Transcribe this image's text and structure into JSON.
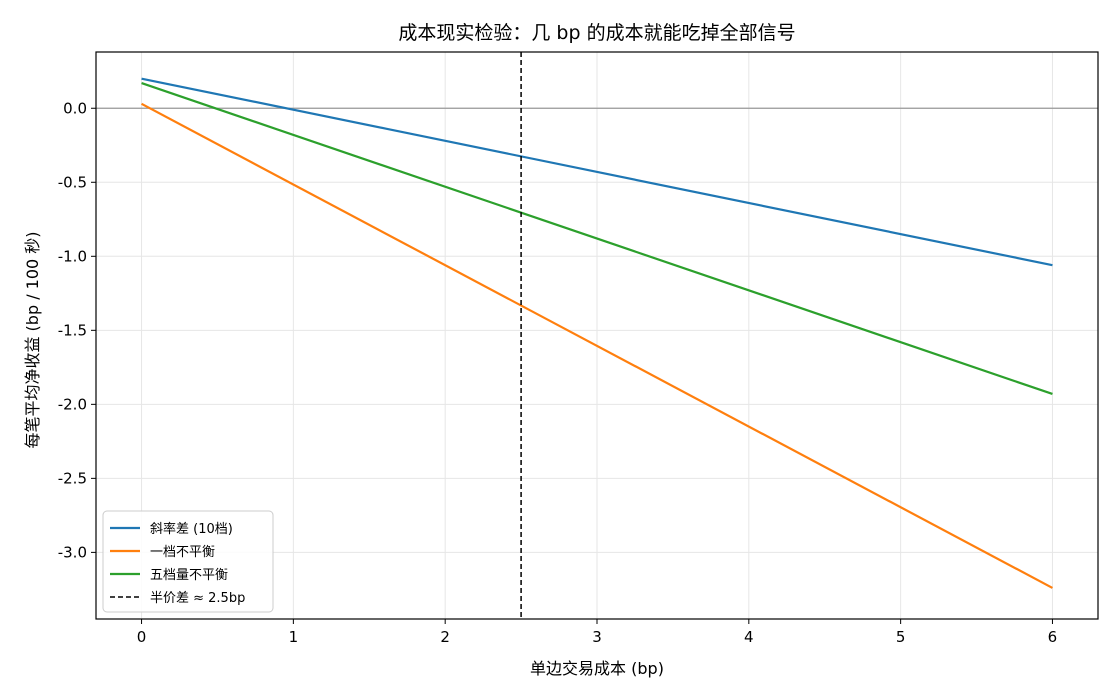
{
  "chart_data": {
    "type": "line",
    "title": "成本现实检验：几 bp 的成本就能吃掉全部信号",
    "xlabel": "单边交易成本 (bp)",
    "ylabel": "每笔平均净收益 (bp / 100 秒)",
    "xlim": [
      -0.3,
      6.3
    ],
    "ylim": [
      -3.45,
      0.38
    ],
    "xticks": [
      0,
      1,
      2,
      3,
      4,
      5,
      6
    ],
    "yticks": [
      0.0,
      -0.5,
      -1.0,
      -1.5,
      -2.0,
      -2.5,
      -3.0
    ],
    "xtick_labels": [
      "0",
      "1",
      "2",
      "3",
      "4",
      "5",
      "6"
    ],
    "ytick_labels": [
      "0.0",
      "-0.5",
      "-1.0",
      "-1.5",
      "-2.0",
      "-2.5",
      "-3.0"
    ],
    "grid": true,
    "legend_position": "lower-left",
    "zero_line": {
      "y": 0.0,
      "color": "#999999"
    },
    "series": [
      {
        "name": "斜率差 (10档)",
        "color": "#1f77b4",
        "x": [
          0,
          6
        ],
        "y": [
          0.2,
          -1.06
        ]
      },
      {
        "name": "一档不平衡",
        "color": "#ff7f0e",
        "x": [
          0,
          6
        ],
        "y": [
          0.03,
          -3.24
        ]
      },
      {
        "name": "五档量不平衡",
        "color": "#2ca02c",
        "x": [
          0,
          6
        ],
        "y": [
          0.17,
          -1.93
        ]
      }
    ],
    "vline": {
      "x": 2.5,
      "label": "半价差 ≈ 2.5bp",
      "color": "#000000",
      "style": "dashed"
    }
  }
}
